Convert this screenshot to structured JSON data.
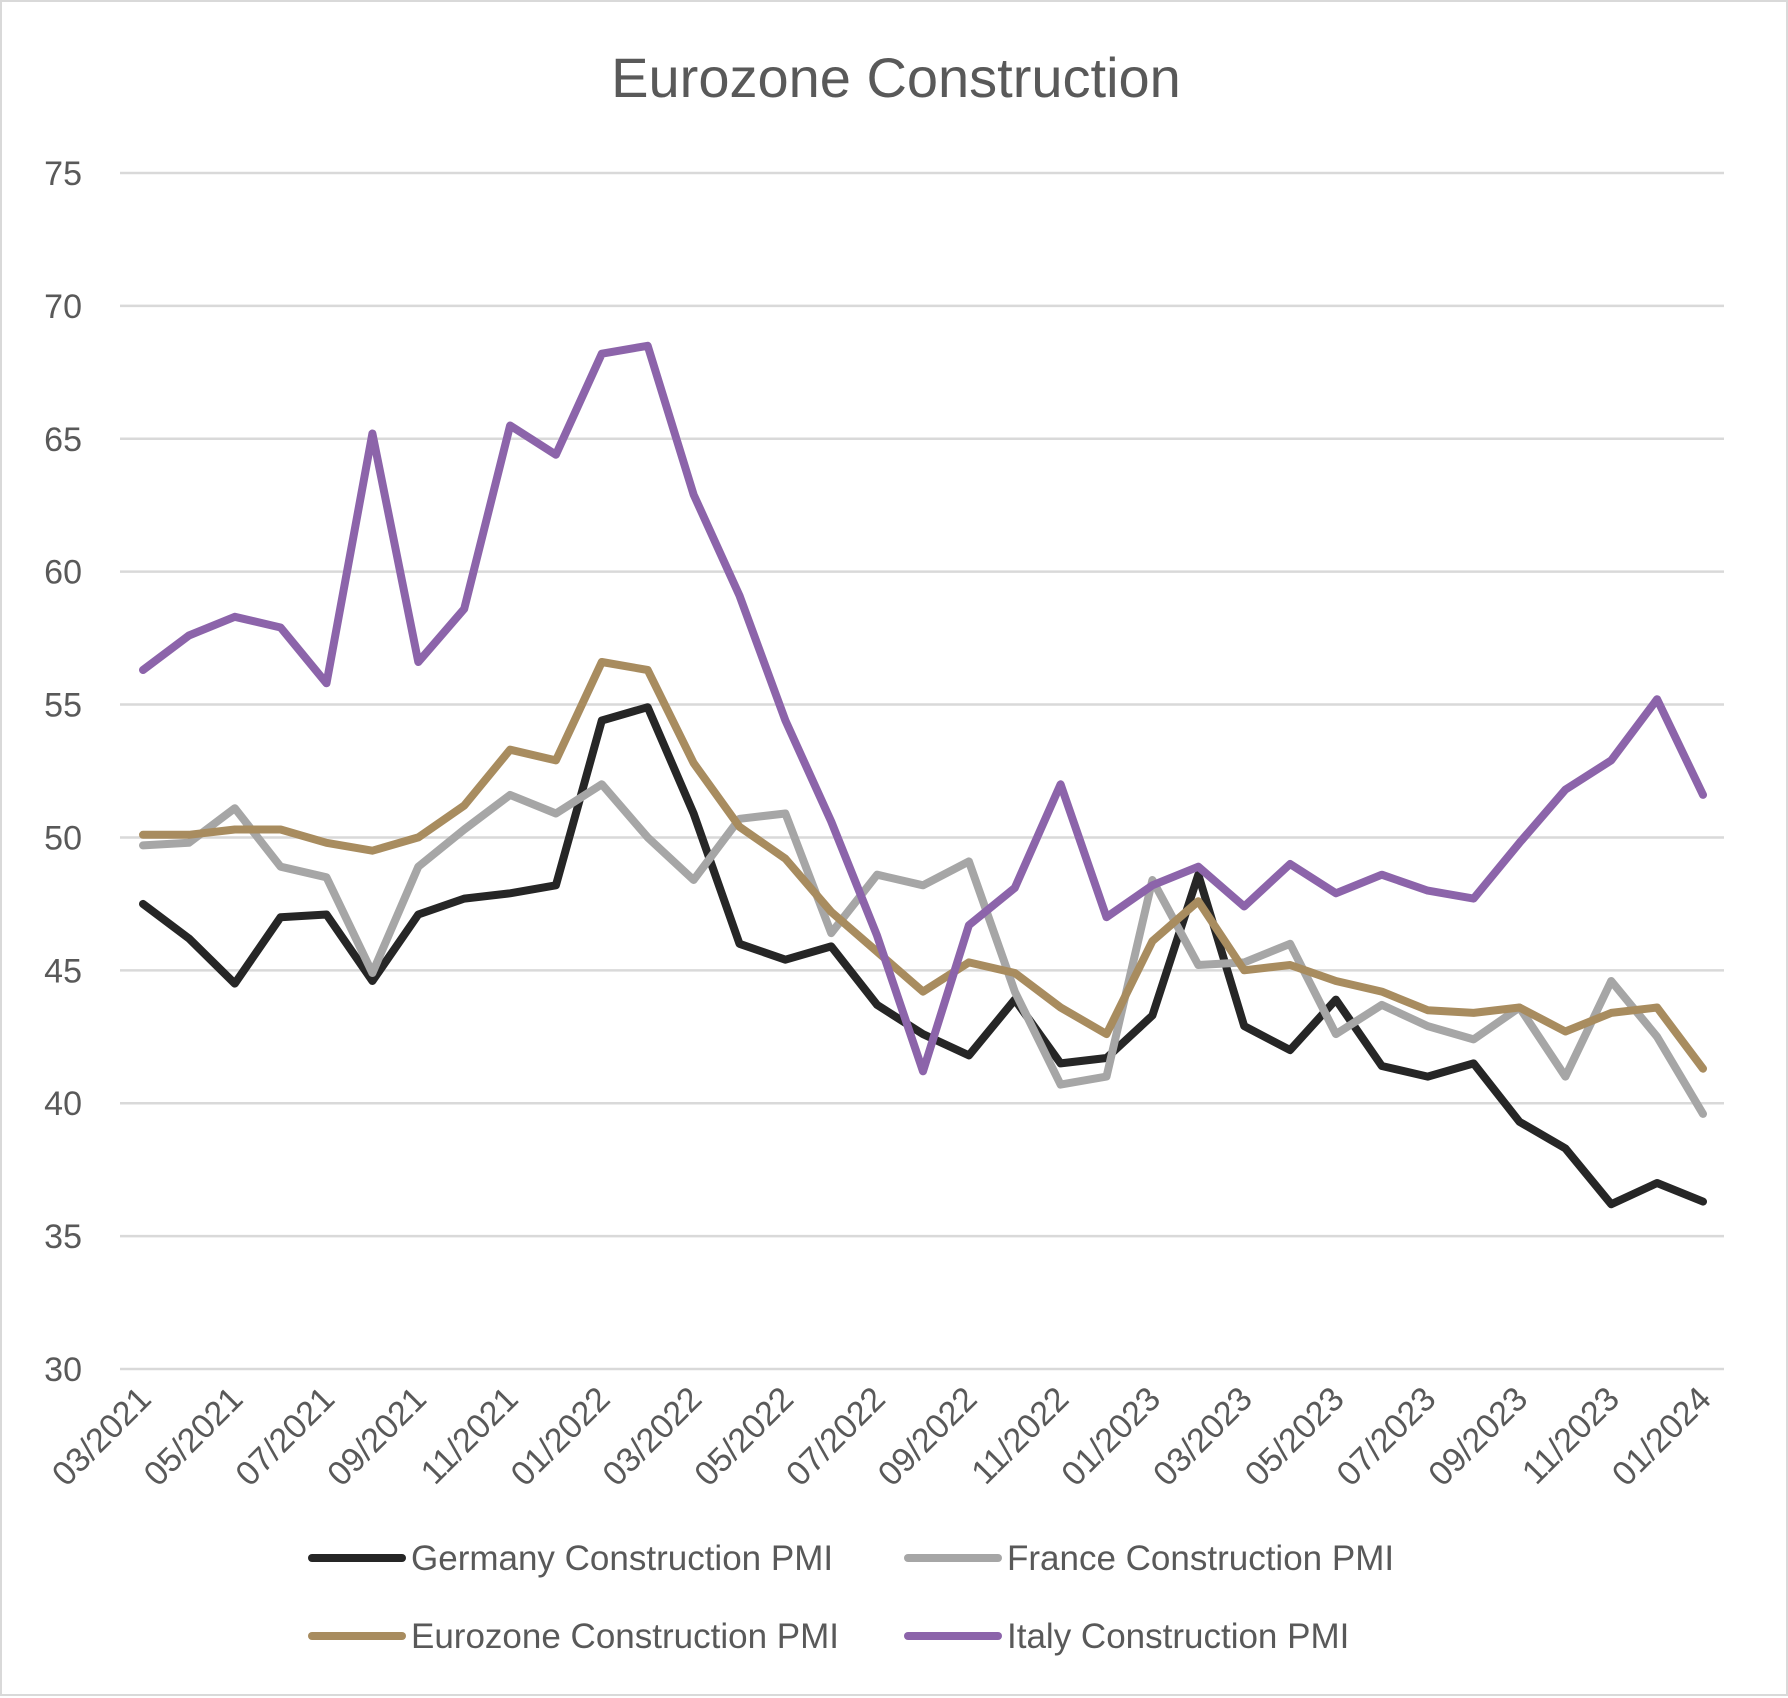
{
  "chart_data": {
    "type": "line",
    "title": "Eurozone Construction",
    "xlabel": "",
    "ylabel": "",
    "ylim": [
      30,
      75
    ],
    "y_ticks": [
      30,
      35,
      40,
      45,
      50,
      55,
      60,
      65,
      70,
      75
    ],
    "grid": true,
    "legend_position": "bottom",
    "x": [
      "03/2021",
      "04/2021",
      "05/2021",
      "06/2021",
      "07/2021",
      "08/2021",
      "09/2021",
      "10/2021",
      "11/2021",
      "12/2021",
      "01/2022",
      "02/2022",
      "03/2022",
      "04/2022",
      "05/2022",
      "06/2022",
      "07/2022",
      "08/2022",
      "09/2022",
      "10/2022",
      "11/2022",
      "12/2022",
      "01/2023",
      "02/2023",
      "03/2023",
      "04/2023",
      "05/2023",
      "06/2023",
      "07/2023",
      "08/2023",
      "09/2023",
      "10/2023",
      "11/2023",
      "12/2023",
      "01/2024"
    ],
    "x_tick_labels": [
      "03/2021",
      "05/2021",
      "07/2021",
      "09/2021",
      "11/2021",
      "01/2022",
      "03/2022",
      "05/2022",
      "07/2022",
      "09/2022",
      "11/2022",
      "01/2023",
      "03/2023",
      "05/2023",
      "07/2023",
      "09/2023",
      "11/2023",
      "01/2024"
    ],
    "series": [
      {
        "name": "Germany Construction PMI",
        "color": "#262626",
        "values": [
          47.5,
          46.2,
          44.5,
          47.0,
          47.1,
          44.6,
          47.1,
          47.7,
          47.9,
          48.2,
          54.4,
          54.9,
          50.9,
          46.0,
          45.4,
          45.9,
          43.7,
          42.6,
          41.8,
          43.9,
          41.5,
          41.7,
          43.3,
          48.6,
          42.9,
          42.0,
          43.9,
          41.4,
          41.0,
          41.5,
          39.3,
          38.3,
          36.2,
          37.0,
          36.3
        ]
      },
      {
        "name": "France Construction PMI",
        "color": "#a6a6a6",
        "values": [
          49.7,
          49.8,
          51.1,
          48.9,
          48.5,
          44.9,
          48.9,
          50.3,
          51.6,
          50.9,
          52.0,
          50.0,
          48.4,
          50.7,
          50.9,
          46.4,
          48.6,
          48.2,
          49.1,
          44.2,
          40.7,
          41.0,
          48.4,
          45.2,
          45.3,
          46.0,
          42.6,
          43.7,
          42.9,
          42.4,
          43.6,
          41.0,
          44.6,
          42.5,
          39.6
        ]
      },
      {
        "name": "Eurozone Construction PMI",
        "color": "#a88c5f",
        "values": [
          50.1,
          50.1,
          50.3,
          50.3,
          49.8,
          49.5,
          50.0,
          51.2,
          53.3,
          52.9,
          56.6,
          56.3,
          52.8,
          50.4,
          49.2,
          47.2,
          45.7,
          44.2,
          45.3,
          44.9,
          43.6,
          42.6,
          46.1,
          47.6,
          45.0,
          45.2,
          44.6,
          44.2,
          43.5,
          43.4,
          43.6,
          42.7,
          43.4,
          43.6,
          41.3
        ]
      },
      {
        "name": "Italy Construction PMI",
        "color": "#8c64aa",
        "values": [
          56.3,
          57.6,
          58.3,
          57.9,
          55.8,
          65.2,
          56.6,
          58.6,
          65.5,
          64.4,
          68.2,
          68.5,
          62.9,
          59.1,
          54.4,
          50.6,
          46.3,
          41.2,
          46.7,
          48.1,
          52.0,
          47.0,
          48.2,
          48.9,
          47.4,
          49.0,
          47.9,
          48.6,
          48.0,
          47.7,
          49.8,
          51.8,
          52.9,
          55.2,
          51.6
        ]
      }
    ]
  }
}
